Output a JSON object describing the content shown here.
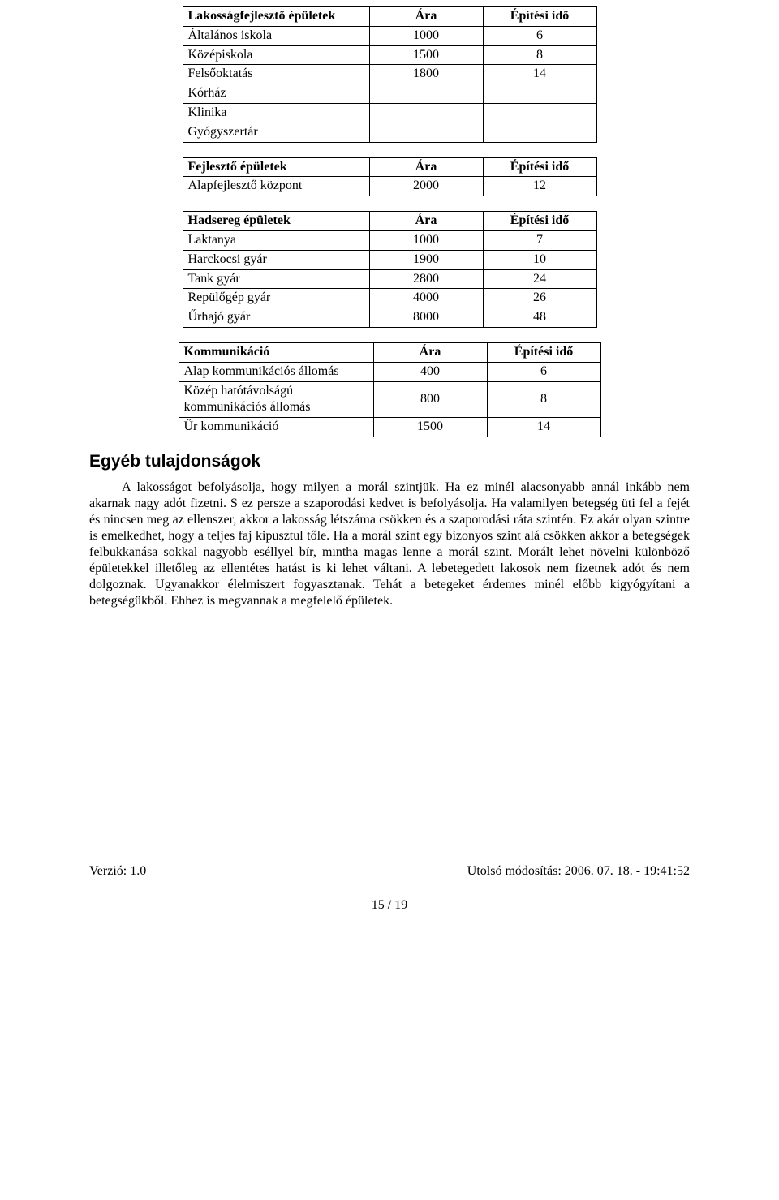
{
  "tables": {
    "t1": {
      "headers": [
        "Lakosságfejlesztő épületek",
        "Ára",
        "Építési idő"
      ],
      "rows": [
        [
          "Általános iskola",
          "1000",
          "6"
        ],
        [
          "Középiskola",
          "1500",
          "8"
        ],
        [
          "Felsőoktatás",
          "1800",
          "14"
        ],
        [
          "Kórház",
          "",
          ""
        ],
        [
          "Klinika",
          "",
          ""
        ],
        [
          "Gyógyszertár",
          "",
          ""
        ]
      ]
    },
    "t2": {
      "headers": [
        "Fejlesztő épületek",
        "Ára",
        "Építési idő"
      ],
      "rows": [
        [
          "Alapfejlesztő központ",
          "2000",
          "12"
        ]
      ]
    },
    "t3": {
      "headers": [
        "Hadsereg épületek",
        "Ára",
        "Építési idő"
      ],
      "rows": [
        [
          "Laktanya",
          "1000",
          "7"
        ],
        [
          "Harckocsi gyár",
          "1900",
          "10"
        ],
        [
          "Tank gyár",
          "2800",
          "24"
        ],
        [
          "Repülőgép gyár",
          "4000",
          "26"
        ],
        [
          "Űrhajó gyár",
          "8000",
          "48"
        ]
      ]
    },
    "t4": {
      "headers": [
        "Kommunikáció",
        "Ára",
        "Építési idő"
      ],
      "rows": [
        [
          "Alap kommunikációs állomás",
          "400",
          "6"
        ],
        [
          "Közép hatótávolságú kommunikációs állomás",
          "800",
          "8"
        ],
        [
          "Űr kommunikáció",
          "1500",
          "14"
        ]
      ]
    }
  },
  "section_heading": "Egyéb tulajdonságok",
  "paragraph": "A lakosságot befolyásolja, hogy milyen a morál szintjük. Ha ez minél alacsonyabb annál inkább nem akarnak nagy adót fizetni. S ez persze a szaporodási kedvet is befolyásolja. Ha valamilyen betegség üti fel a fejét és nincsen meg az ellenszer, akkor a lakosság létszáma csökken és a szaporodási ráta szintén. Ez akár olyan szintre is emelkedhet, hogy a teljes faj kipusztul tőle. Ha a morál szint egy bizonyos szint alá csökken akkor a betegségek felbukkanása sokkal nagyobb eséllyel bír, mintha magas lenne a morál szint. Morált lehet növelni különböző épületekkel illetőleg az ellentétes hatást is ki lehet váltani. A lebetegedett lakosok nem fizetnek adót és nem dolgoznak. Ugyanakkor élelmiszert fogyasztanak. Tehát a betegeket érdemes minél előbb kigyógyítani a betegségükből. Ehhez is megvannak a megfelelő épületek.",
  "footer": {
    "version": "Verzió: 1.0",
    "modified": "Utolsó módosítás: 2006. 07. 18. - 19:41:52"
  },
  "page_num": "15 / 19"
}
